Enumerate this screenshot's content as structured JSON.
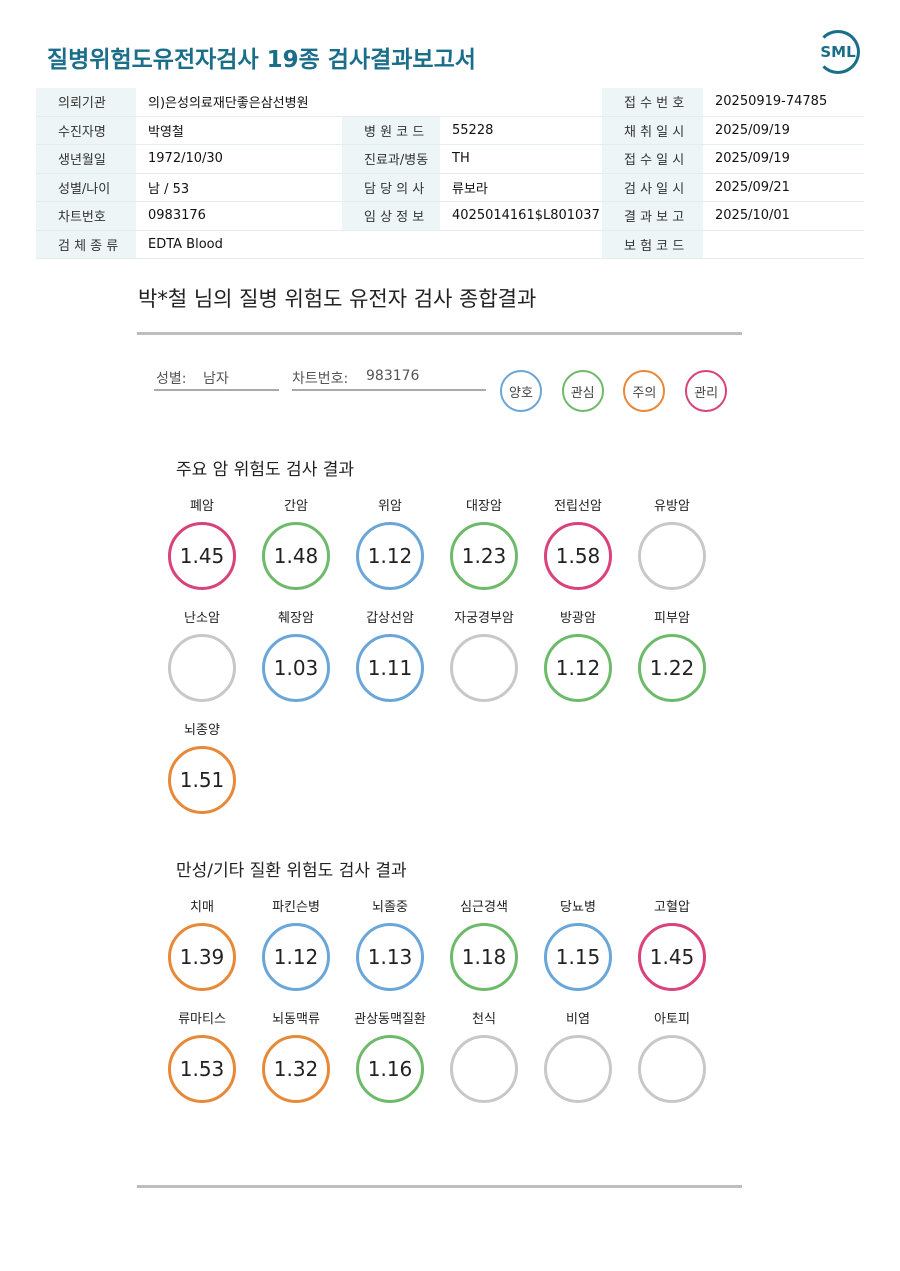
{
  "header": {
    "title": "질병위험도유전자검사 19종 검사결과보고서",
    "logo": "SML"
  },
  "table": {
    "rows": [
      [
        "의뢰기관",
        "의)은성의료재단좋은삼선병원",
        null,
        null,
        "접 수 번 호",
        "20250919-74785"
      ],
      [
        "수진자명",
        "박영철",
        "병 원 코 드",
        "55228",
        "채 취 일 시",
        "2025/09/19"
      ],
      [
        "생년월일",
        "1972/10/30",
        "진료과/병동",
        "TH",
        "접 수 일 시",
        "2025/09/19"
      ],
      [
        "성별/나이",
        "남 / 53",
        "담 당 의 사",
        "류보라",
        "검 사 일 시",
        "2025/09/21"
      ],
      [
        "차트번호",
        "0983176",
        "임 상 정 보",
        "4025014161$L801037",
        "결 과 보 고",
        "2025/10/01"
      ],
      [
        "검 체 종 류",
        "EDTA Blood",
        null,
        null,
        "보 험 코 드",
        null
      ]
    ]
  },
  "summary": {
    "title": "박*철 님의 질병 위험도 유전자 검사 종합결과",
    "sex_label": "성별:",
    "sex": "남자",
    "chart_label": "차트번호:",
    "chart_no": "983176",
    "legend": [
      {
        "label": "양호",
        "color": "#6aa6d8"
      },
      {
        "label": "관심",
        "color": "#6dbb6a"
      },
      {
        "label": "주의",
        "color": "#e8893a"
      },
      {
        "label": "관리",
        "color": "#d9427a"
      }
    ]
  },
  "sections": [
    {
      "title": "주요 암 위험도 검사 결과",
      "items": [
        {
          "name": "폐암",
          "value": 1.45,
          "color": "#d9427a"
        },
        {
          "name": "간암",
          "value": 1.48,
          "color": "#6dbb6a"
        },
        {
          "name": "위암",
          "value": 1.12,
          "color": "#6aa6d8"
        },
        {
          "name": "대장암",
          "value": 1.23,
          "color": "#6dbb6a"
        },
        {
          "name": "전립선암",
          "value": 1.58,
          "color": "#d9427a"
        },
        {
          "name": "유방암",
          "value": null,
          "color": "#c8c8c8"
        },
        {
          "name": "난소암",
          "value": null,
          "color": "#c8c8c8"
        },
        {
          "name": "췌장암",
          "value": 1.03,
          "color": "#6aa6d8"
        },
        {
          "name": "갑상선암",
          "value": 1.11,
          "color": "#6aa6d8"
        },
        {
          "name": "자궁경부암",
          "value": null,
          "color": "#c8c8c8"
        },
        {
          "name": "방광암",
          "value": 1.12,
          "color": "#6dbb6a"
        },
        {
          "name": "피부암",
          "value": 1.22,
          "color": "#6dbb6a"
        },
        {
          "name": "뇌종양",
          "value": 1.51,
          "color": "#e8893a"
        }
      ]
    },
    {
      "title": "만성/기타 질환 위험도 검사 결과",
      "items": [
        {
          "name": "치매",
          "value": 1.39,
          "color": "#e8893a"
        },
        {
          "name": "파킨슨병",
          "value": 1.12,
          "color": "#6aa6d8"
        },
        {
          "name": "뇌졸중",
          "value": 1.13,
          "color": "#6aa6d8"
        },
        {
          "name": "심근경색",
          "value": 1.18,
          "color": "#6dbb6a"
        },
        {
          "name": "당뇨병",
          "value": 1.15,
          "color": "#6aa6d8"
        },
        {
          "name": "고혈압",
          "value": 1.45,
          "color": "#d9427a"
        },
        {
          "name": "류마티스",
          "value": 1.53,
          "color": "#e8893a"
        },
        {
          "name": "뇌동맥류",
          "value": 1.32,
          "color": "#e8893a"
        },
        {
          "name": "관상동맥질환",
          "value": 1.16,
          "color": "#6dbb6a"
        },
        {
          "name": "천식",
          "value": null,
          "color": "#c8c8c8"
        },
        {
          "name": "비염",
          "value": null,
          "color": "#c8c8c8"
        },
        {
          "name": "아토피",
          "value": null,
          "color": "#c8c8c8"
        }
      ]
    }
  ]
}
